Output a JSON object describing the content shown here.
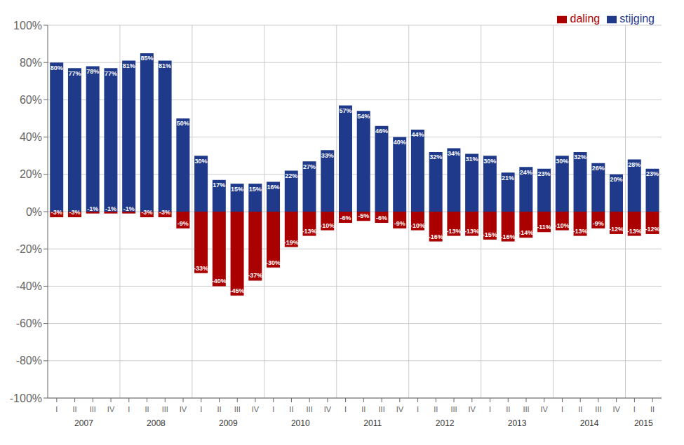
{
  "chart_data": {
    "type": "bar",
    "stacked": true,
    "grid": true,
    "legend": "upper right",
    "data_labels": true,
    "categories": [
      "I",
      "II",
      "III",
      "IV",
      "I",
      "II",
      "III",
      "IV",
      "I",
      "II",
      "III",
      "IV",
      "I",
      "II",
      "III",
      "IV",
      "I",
      "II",
      "III",
      "IV",
      "I",
      "II",
      "III",
      "IV",
      "I",
      "II",
      "III",
      "IV",
      "I",
      "II",
      "III",
      "IV",
      "I",
      "II"
    ],
    "years": [
      "2007",
      "2007",
      "2007",
      "2007",
      "2008",
      "2008",
      "2008",
      "2008",
      "2009",
      "2009",
      "2009",
      "2009",
      "2010",
      "2010",
      "2010",
      "2010",
      "2011",
      "2011",
      "2011",
      "2011",
      "2012",
      "2012",
      "2012",
      "2012",
      "2013",
      "2013",
      "2013",
      "2013",
      "2014",
      "2014",
      "2014",
      "2014",
      "2015",
      "2015"
    ],
    "series": [
      {
        "name": "stijging",
        "color": "#1F3A8A",
        "values": [
          80,
          77,
          78,
          77,
          81,
          85,
          81,
          50,
          30,
          17,
          15,
          15,
          16,
          22,
          27,
          33,
          57,
          54,
          46,
          40,
          44,
          32,
          34,
          31,
          30,
          21,
          24,
          23,
          30,
          32,
          26,
          20,
          28,
          23
        ],
        "value_labels": [
          "80%",
          "77%",
          "78%",
          "77%",
          "81%",
          "85%",
          "81%",
          "50%",
          "30%",
          "17%",
          "15%",
          "15%",
          "16%",
          "22%",
          "27%",
          "33%",
          "57%",
          "54%",
          "46%",
          "40%",
          "44%",
          "32%",
          "34%",
          "31%",
          "30%",
          "21%",
          "24%",
          "23%",
          "30%",
          "32%",
          "26%",
          "20%",
          "28%",
          "23%"
        ]
      },
      {
        "name": "daling",
        "color": "#AA0000",
        "values": [
          -3,
          -3,
          -1,
          -1,
          -1,
          -3,
          -3,
          -9,
          -33,
          -40,
          -45,
          -37,
          -30,
          -19,
          -13,
          -10,
          -6,
          -5,
          -6,
          -9,
          -10,
          -16,
          -13,
          -13,
          -15,
          -16,
          -14,
          -11,
          -10,
          -13,
          -9,
          -12,
          -13,
          -12
        ],
        "value_labels": [
          "-3%",
          "-3%",
          "-1%",
          "-1%",
          "-1%",
          "-3%",
          "-3%",
          "-9%",
          "-33%",
          "-40%",
          "-45%",
          "-37%",
          "-30%",
          "-19%",
          "-13%",
          "-10%",
          "-6%",
          "-5%",
          "-6%",
          "-9%",
          "-10%",
          "-16%",
          "-13%",
          "-13%",
          "-15%",
          "-16%",
          "-14%",
          "-11%",
          "-10%",
          "-13%",
          "-9%",
          "-12%",
          "-13%",
          "-12%"
        ]
      }
    ],
    "ylim": [
      -100,
      100
    ],
    "yticks": [
      {
        "value": -100,
        "label": "-100%"
      },
      {
        "value": -80,
        "label": "-80%"
      },
      {
        "value": -60,
        "label": "-60%"
      },
      {
        "value": -40,
        "label": "-40%"
      },
      {
        "value": -20,
        "label": "-20%"
      },
      {
        "value": 0,
        "label": "0%"
      },
      {
        "value": 20,
        "label": "20%"
      },
      {
        "value": 40,
        "label": "40%"
      },
      {
        "value": 60,
        "label": "60%"
      },
      {
        "value": 80,
        "label": "80%"
      },
      {
        "value": 100,
        "label": "100%"
      }
    ]
  }
}
